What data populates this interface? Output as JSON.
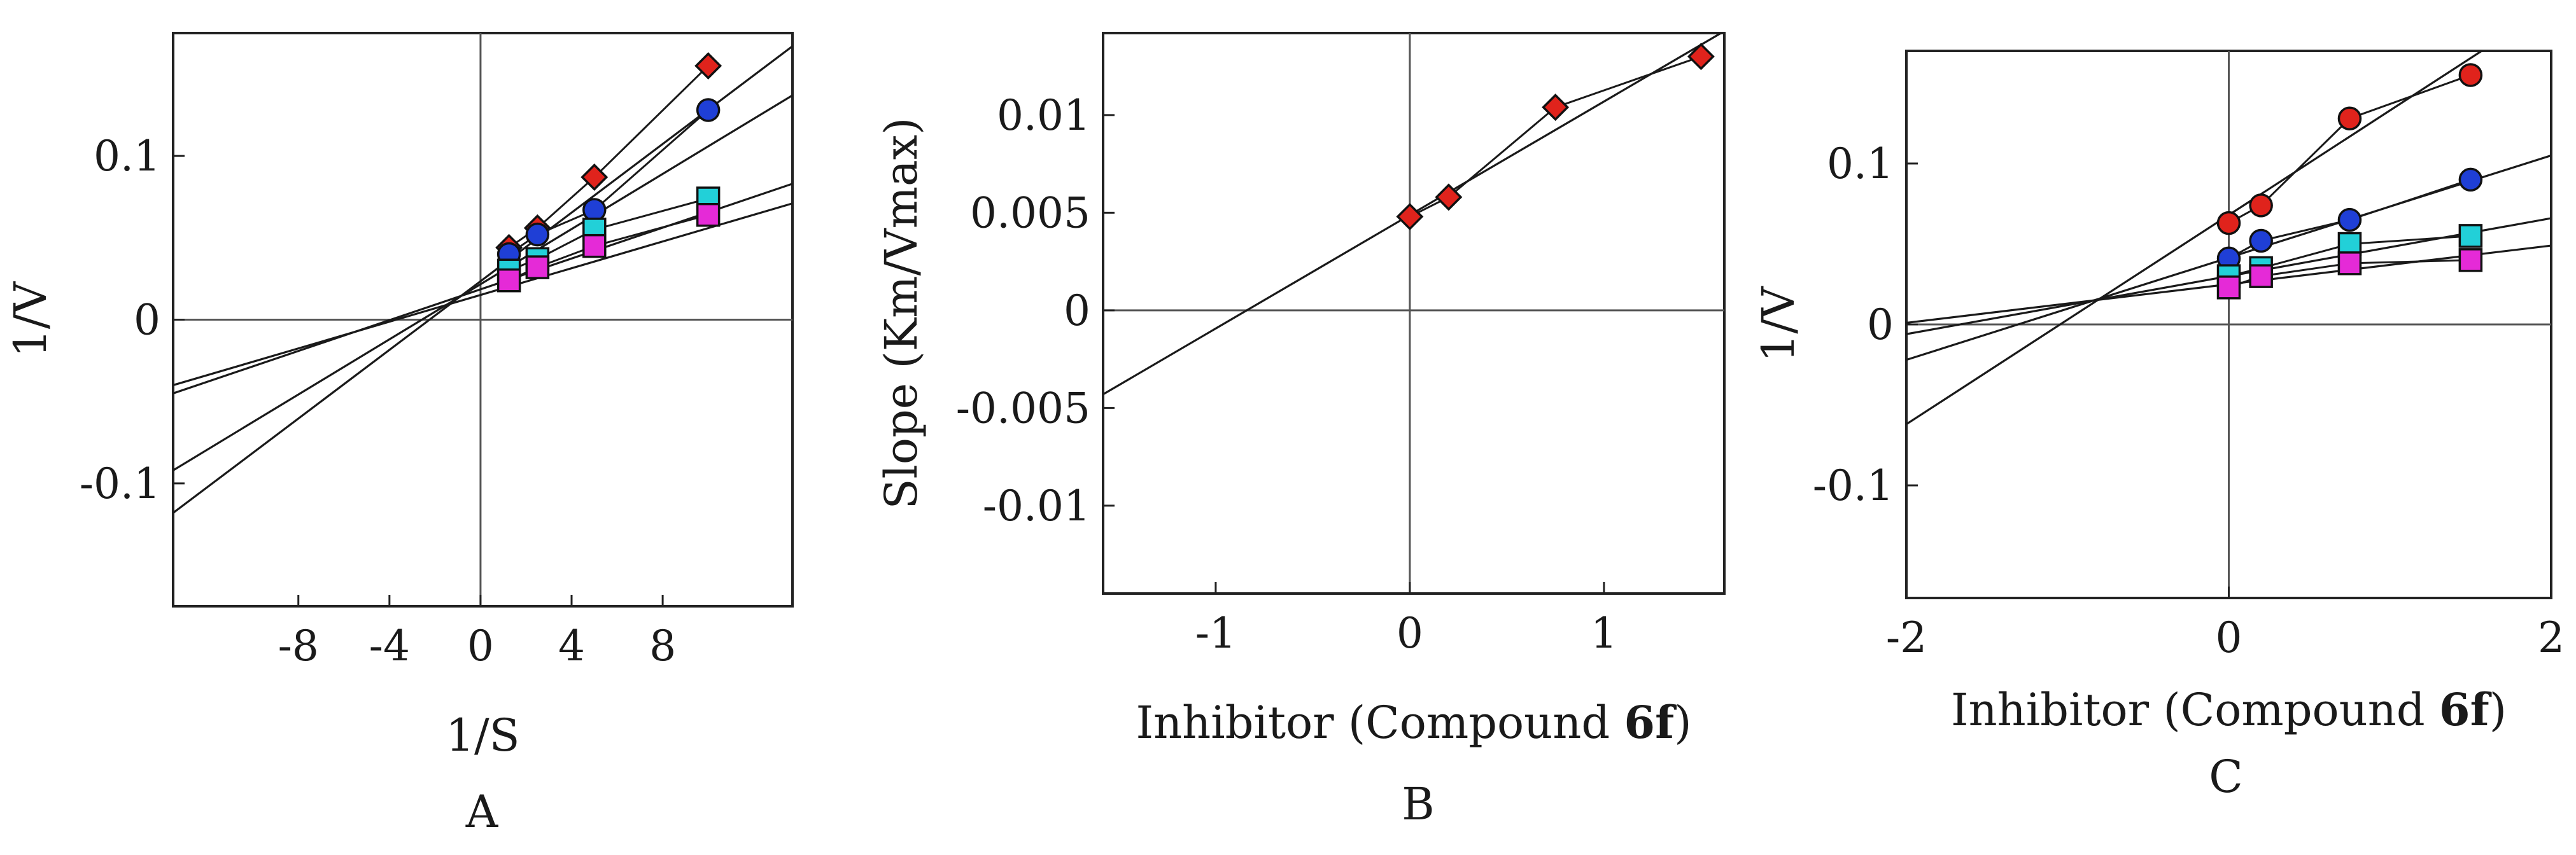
{
  "chart_data": [
    {
      "type": "line",
      "panel_label": "A",
      "xlabel": "1/S",
      "ylabel": "1/V",
      "xlim": [
        -13.5,
        13.7
      ],
      "ylim": [
        -0.175,
        0.175
      ],
      "xticks": [
        -8,
        -4,
        0,
        4,
        8
      ],
      "yticks": [
        -0.1,
        0,
        0.1
      ],
      "xtick_labels": [
        "-8",
        "-4",
        "0",
        "4",
        "8"
      ],
      "ytick_labels": [
        "-0.1",
        "0",
        "0.1"
      ],
      "grid": false,
      "axes_through_origin": true,
      "series": [
        {
          "color": "#e0231c",
          "marker": "diamond",
          "x": [
            1.25,
            2.5,
            5,
            10
          ],
          "y": [
            0.044,
            0.056,
            0.087,
            0.155
          ],
          "line": [
            [
              -13.5,
              -0.118
            ],
            [
              13.7,
              0.167
            ]
          ]
        },
        {
          "color": "#1f3fd6",
          "marker": "circle",
          "x": [
            1.25,
            2.5,
            5,
            10
          ],
          "y": [
            0.04,
            0.052,
            0.067,
            0.128
          ],
          "line": [
            [
              -13.5,
              -0.092
            ],
            [
              13.7,
              0.137
            ]
          ]
        },
        {
          "color": "#22d0d8",
          "marker": "square",
          "x": [
            1.25,
            2.5,
            5,
            10
          ],
          "y": [
            0.03,
            0.037,
            0.055,
            0.074
          ],
          "line": [
            [
              -13.5,
              -0.045
            ],
            [
              13.7,
              0.083
            ]
          ]
        },
        {
          "color": "#e52ad7",
          "marker": "square",
          "x": [
            1.25,
            2.5,
            5,
            10
          ],
          "y": [
            0.024,
            0.032,
            0.045,
            0.064
          ],
          "line": [
            [
              -13.5,
              -0.04
            ],
            [
              13.7,
              0.071
            ]
          ]
        }
      ]
    },
    {
      "type": "line",
      "panel_label": "B",
      "xlabel": "Inhibitor (Compound 6f)",
      "ylabel": "Slope (Km/Vmax)",
      "xlim": [
        -1.58,
        1.62
      ],
      "ylim": [
        -0.0145,
        0.0142
      ],
      "xticks": [
        -1,
        0,
        1
      ],
      "yticks": [
        -0.01,
        -0.005,
        0,
        0.005,
        0.01
      ],
      "xtick_labels": [
        "-1",
        "0",
        "1"
      ],
      "ytick_labels": [
        "-0.01",
        "-0.005",
        "0",
        "0.005",
        "0.01"
      ],
      "grid": false,
      "axes_through_origin": true,
      "series": [
        {
          "color": "#e0231c",
          "marker": "diamond",
          "x": [
            0,
            0.2,
            0.75,
            1.5
          ],
          "y": [
            0.0048,
            0.0058,
            0.0104,
            0.013
          ],
          "line": [
            [
              -1.58,
              -0.0043
            ],
            [
              1.62,
              0.0143
            ]
          ]
        }
      ]
    },
    {
      "type": "line",
      "panel_label": "C",
      "xlabel": "Inhibitor (Compound 6f)",
      "ylabel": "1/V",
      "xlim": [
        -2.0,
        2.0
      ],
      "ylim": [
        -0.17,
        0.17
      ],
      "xticks": [
        -2,
        0,
        2
      ],
      "yticks": [
        -0.1,
        0,
        0.1
      ],
      "xtick_labels": [
        "-2",
        "0",
        "2"
      ],
      "ytick_labels": [
        "-0.1",
        "0",
        "0.1"
      ],
      "grid": false,
      "axes_through_origin": true,
      "series": [
        {
          "color": "#e0231c",
          "marker": "circle",
          "x": [
            0,
            0.2,
            0.75,
            1.5
          ],
          "y": [
            0.063,
            0.074,
            0.128,
            0.155
          ],
          "line": [
            [
              -2.0,
              -0.062
            ],
            [
              1.6,
              0.172
            ]
          ]
        },
        {
          "color": "#1f3fd6",
          "marker": "circle",
          "x": [
            0,
            0.2,
            0.75,
            1.5
          ],
          "y": [
            0.041,
            0.052,
            0.065,
            0.09
          ],
          "line": [
            [
              -2.0,
              -0.022
            ],
            [
              2.0,
              0.105
            ]
          ]
        },
        {
          "color": "#22d0d8",
          "marker": "square",
          "x": [
            0,
            0.2,
            0.75,
            1.5
          ],
          "y": [
            0.03,
            0.035,
            0.05,
            0.055
          ],
          "line": [
            [
              -2.0,
              -0.006
            ],
            [
              2.0,
              0.066
            ]
          ]
        },
        {
          "color": "#e52ad7",
          "marker": "square",
          "x": [
            0,
            0.2,
            0.75,
            1.5
          ],
          "y": [
            0.023,
            0.03,
            0.038,
            0.04
          ],
          "line": [
            [
              -2.0,
              0.001
            ],
            [
              2.0,
              0.049
            ]
          ]
        }
      ]
    }
  ]
}
